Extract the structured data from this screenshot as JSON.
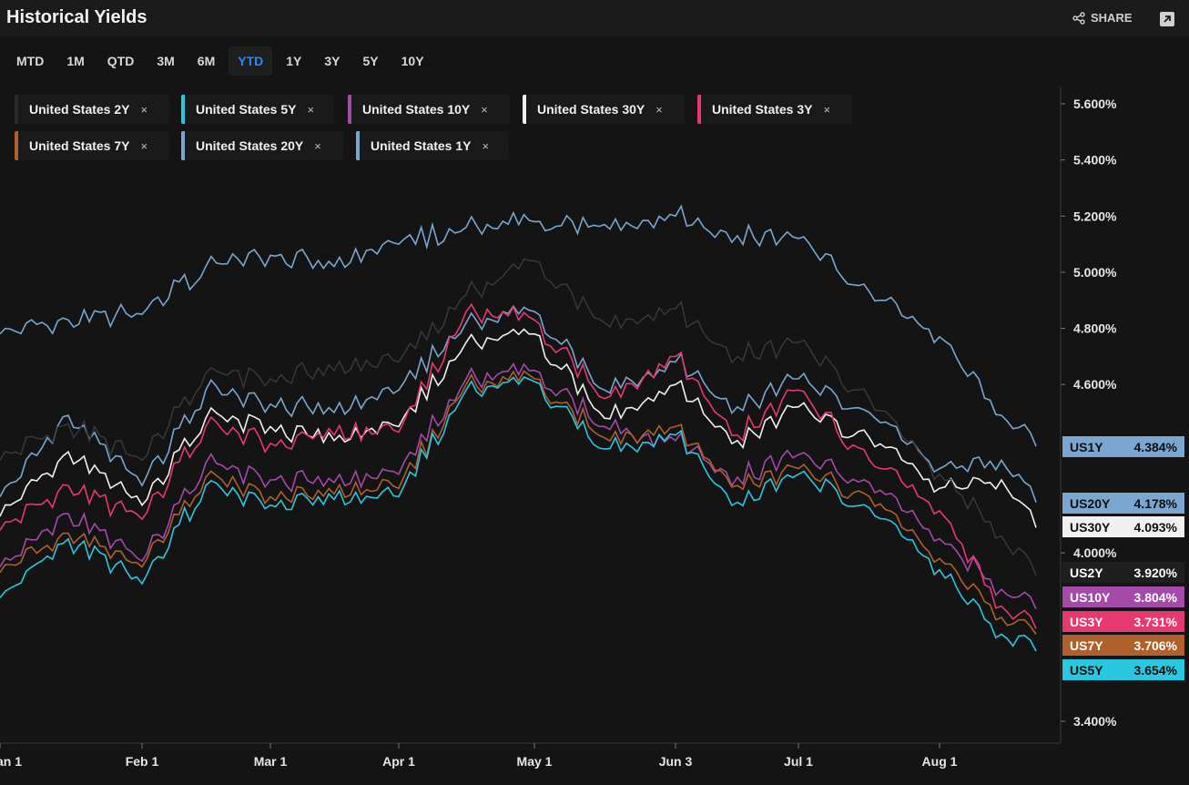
{
  "header": {
    "title": "Historical Yields",
    "share_label": "SHARE",
    "share_icon": "share-icon",
    "expand_icon": "expand-icon"
  },
  "range_tabs": [
    {
      "label": "MTD",
      "active": false
    },
    {
      "label": "1M",
      "active": false
    },
    {
      "label": "QTD",
      "active": false
    },
    {
      "label": "3M",
      "active": false
    },
    {
      "label": "6M",
      "active": false
    },
    {
      "label": "YTD",
      "active": true
    },
    {
      "label": "1Y",
      "active": false
    },
    {
      "label": "3Y",
      "active": false
    },
    {
      "label": "5Y",
      "active": false
    },
    {
      "label": "10Y",
      "active": false
    }
  ],
  "chips": [
    {
      "label": "United States 2Y",
      "close": "×",
      "color": "#2a2a2a"
    },
    {
      "label": "United States 5Y",
      "close": "×",
      "color": "#29c8e0"
    },
    {
      "label": "United States 10Y",
      "close": "×",
      "color": "#a44aa8"
    },
    {
      "label": "United States 30Y",
      "close": "×",
      "color": "#f0f0f0"
    },
    {
      "label": "United States 3Y",
      "close": "×",
      "color": "#e83870"
    },
    {
      "label": "United States 7Y",
      "close": "×",
      "color": "#b0602a"
    },
    {
      "label": "United States 20Y",
      "close": "×",
      "color": "#7aa6cf"
    },
    {
      "label": "United States 1Y",
      "close": "×",
      "color": "#7aa6cf"
    }
  ],
  "chart_data": {
    "type": "line",
    "title": "",
    "xlabel": "",
    "ylabel": "",
    "x_ticks": [
      "an 1",
      "Feb 1",
      "Mar 1",
      "Apr 1",
      "May 1",
      "Jun 3",
      "Jul 1",
      "Aug 1"
    ],
    "y_ticks": [
      "3.400%",
      "4.000%",
      "4.600%",
      "4.800%",
      "5.000%",
      "5.200%",
      "5.400%",
      "5.600%"
    ],
    "ylim": [
      3.33,
      5.65
    ],
    "grid": false,
    "x": [
      "Jan 1",
      "Jan 15",
      "Feb 1",
      "Feb 15",
      "Mar 1",
      "Mar 15",
      "Apr 1",
      "Apr 15",
      "May 1",
      "May 15",
      "Jun 3",
      "Jun 17",
      "Jul 1",
      "Jul 15",
      "Aug 1",
      "Aug 15",
      "Aug 23"
    ],
    "series": [
      {
        "name": "US1Y",
        "color": "#7aa6cf",
        "end_label": "4.384%",
        "values": [
          4.78,
          4.83,
          4.85,
          5.02,
          5.06,
          5.02,
          5.1,
          5.16,
          5.18,
          5.17,
          5.2,
          5.13,
          5.12,
          4.93,
          4.77,
          4.49,
          4.38
        ]
      },
      {
        "name": "US20Y",
        "color": "#7aa6cf",
        "end_label": "4.178%",
        "values": [
          4.2,
          4.49,
          4.24,
          4.58,
          4.53,
          4.5,
          4.58,
          4.82,
          4.86,
          4.58,
          4.68,
          4.52,
          4.62,
          4.5,
          4.3,
          4.33,
          4.18
        ]
      },
      {
        "name": "US30Y",
        "color": "#f0f0f0",
        "end_label": "4.093%",
        "values": [
          4.13,
          4.36,
          4.17,
          4.48,
          4.45,
          4.4,
          4.45,
          4.75,
          4.78,
          4.48,
          4.6,
          4.4,
          4.52,
          4.41,
          4.23,
          4.26,
          4.09
        ]
      },
      {
        "name": "US2Y",
        "color": "#2a2a2a",
        "end_label": "3.920%",
        "values": [
          4.33,
          4.46,
          4.33,
          4.64,
          4.62,
          4.65,
          4.68,
          4.92,
          5.04,
          4.82,
          4.87,
          4.7,
          4.75,
          4.55,
          4.28,
          4.06,
          3.92
        ]
      },
      {
        "name": "US10Y",
        "color": "#a44aa8",
        "end_label": "3.804%",
        "values": [
          3.95,
          4.14,
          3.97,
          4.32,
          4.26,
          4.25,
          4.28,
          4.62,
          4.65,
          4.45,
          4.4,
          4.27,
          4.35,
          4.25,
          4.05,
          3.87,
          3.8
        ]
      },
      {
        "name": "US3Y",
        "color": "#e83870",
        "end_label": "3.731%",
        "values": [
          4.08,
          4.24,
          4.12,
          4.45,
          4.39,
          4.42,
          4.43,
          4.86,
          4.83,
          4.55,
          4.7,
          4.42,
          4.58,
          4.33,
          4.15,
          3.81,
          3.73
        ]
      },
      {
        "name": "US7Y",
        "color": "#b0602a",
        "end_label": "3.706%",
        "values": [
          3.93,
          4.07,
          3.95,
          4.27,
          4.2,
          4.21,
          4.23,
          4.6,
          4.62,
          4.41,
          4.45,
          4.24,
          4.3,
          4.2,
          3.98,
          3.77,
          3.71
        ]
      },
      {
        "name": "US5Y",
        "color": "#29c8e0",
        "end_label": "3.654%",
        "values": [
          3.84,
          4.05,
          3.89,
          4.24,
          4.17,
          4.19,
          4.2,
          4.58,
          4.61,
          4.37,
          4.42,
          4.18,
          4.28,
          4.16,
          3.94,
          3.71,
          3.65
        ]
      }
    ]
  }
}
